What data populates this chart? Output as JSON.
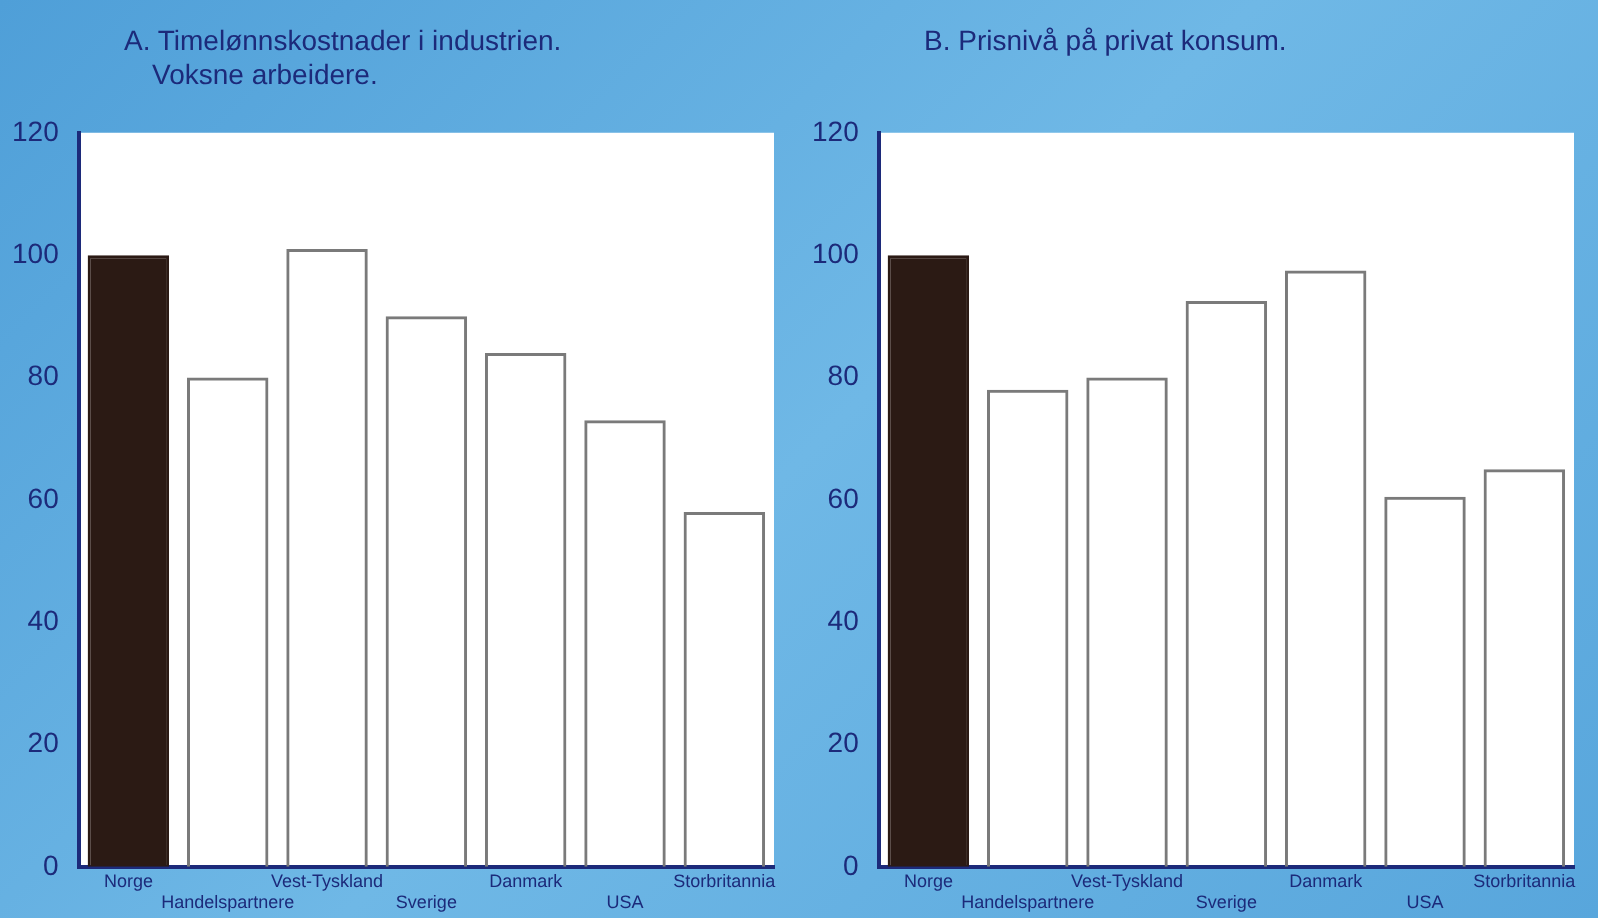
{
  "chart_data": [
    {
      "type": "bar",
      "title": "A. Timelønnskostnader i industrien.",
      "subtitle": "Voksne arbeidere.",
      "categories": [
        "Norge",
        "Handelspartnere",
        "Vest-Tyskland",
        "Sverige",
        "Danmark",
        "USA",
        "Storbritannia"
      ],
      "values": [
        100,
        80,
        101,
        90,
        84,
        73,
        58
      ],
      "colors": [
        "#2b1a14",
        "#7a7a7a",
        "#7a7a7a",
        "#7a7a7a",
        "#7a7a7a",
        "#7a7a7a",
        "#7a7a7a"
      ],
      "ylim": [
        0,
        120
      ],
      "yticks": [
        0,
        20,
        40,
        60,
        80,
        100,
        120
      ],
      "grid": false,
      "legend": false
    },
    {
      "type": "bar",
      "title": "B. Prisnivå på privat konsum.",
      "categories": [
        "Norge",
        "Handelspartnere",
        "Vest-Tyskland",
        "Sverige",
        "Danmark",
        "USA",
        "Storbritannia"
      ],
      "values": [
        100,
        78,
        80,
        92.5,
        97.5,
        60.5,
        65
      ],
      "colors": [
        "#2b1a14",
        "#7a7a7a",
        "#7a7a7a",
        "#7a7a7a",
        "#7a7a7a",
        "#7a7a7a",
        "#7a7a7a"
      ],
      "ylim": [
        0,
        120
      ],
      "yticks": [
        0,
        20,
        40,
        60,
        80,
        100,
        120
      ],
      "grid": false,
      "legend": false
    }
  ]
}
